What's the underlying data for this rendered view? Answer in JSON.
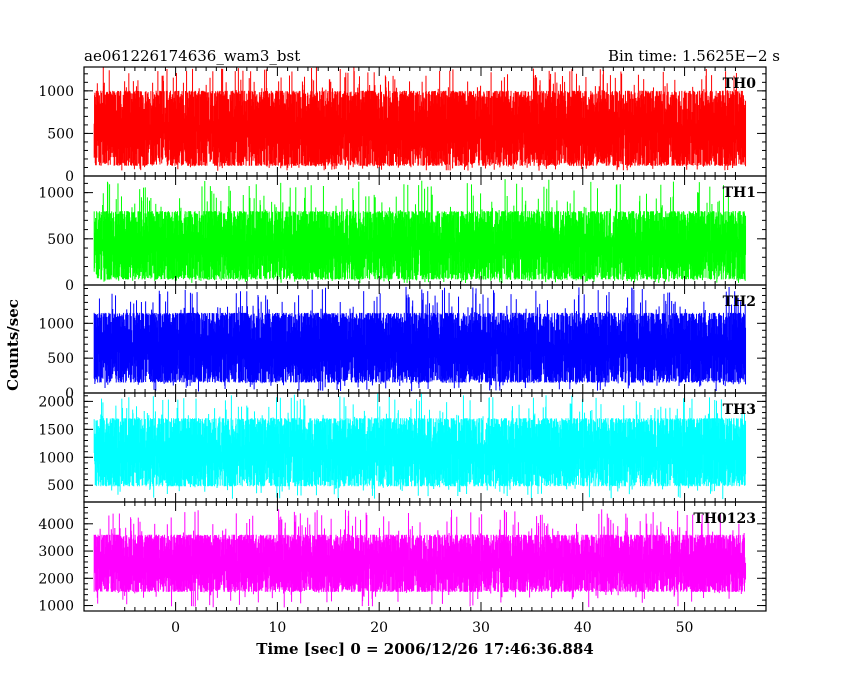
{
  "header": {
    "title": "ae061226174636_wam3_bst",
    "bin_time": "Bin time: 1.5625E−2 s"
  },
  "axes": {
    "xlabel": "Time [sec] 0 = 2006/12/26 17:46:36.884",
    "ylabel": "Counts/sec"
  },
  "chart_data": {
    "type": "line",
    "title": "ae061226174636_wam3_bst",
    "subtitle": "Bin time: 1.5625E−2 s",
    "xlabel": "Time [sec] 0 = 2006/12/26 17:46:36.884",
    "ylabel": "Counts/sec",
    "xlim": [
      -9,
      58
    ],
    "x_range": [
      -8,
      56
    ],
    "xticks": [
      0,
      10,
      20,
      30,
      40,
      50
    ],
    "xtick_labels": [
      "0",
      "10",
      "20",
      "30",
      "40",
      "50"
    ],
    "bin_time_s": 0.015625,
    "panels": [
      {
        "name": "TH0",
        "color": "#ff0000",
        "ylim": [
          0,
          1280
        ],
        "yticks": [
          0,
          500,
          1000
        ],
        "ytick_labels": [
          "0",
          "500",
          "1000"
        ],
        "typical_min": 120,
        "typical_max": 1000,
        "peak_max": 1280,
        "dip_min": 60
      },
      {
        "name": "TH1",
        "color": "#00ff00",
        "ylim": [
          0,
          1180
        ],
        "yticks": [
          0,
          500,
          1000
        ],
        "ytick_labels": [
          "0",
          "500",
          "1000"
        ],
        "typical_min": 60,
        "typical_max": 800,
        "peak_max": 1150,
        "dip_min": 20
      },
      {
        "name": "TH2",
        "color": "#0000ff",
        "ylim": [
          0,
          1550
        ],
        "yticks": [
          0,
          500,
          1000
        ],
        "ytick_labels": [
          "0",
          "500",
          "1000"
        ],
        "typical_min": 150,
        "typical_max": 1150,
        "peak_max": 1550,
        "dip_min": 20
      },
      {
        "name": "TH3",
        "color": "#00ffff",
        "ylim": [
          200,
          2150
        ],
        "yticks": [
          500,
          1000,
          1500,
          2000
        ],
        "ytick_labels": [
          "500",
          "1000",
          "1500",
          "2000"
        ],
        "typical_min": 480,
        "typical_max": 1700,
        "peak_max": 2150,
        "dip_min": 250
      },
      {
        "name": "TH0123",
        "color": "#ff00ff",
        "ylim": [
          800,
          4800
        ],
        "yticks": [
          1000,
          2000,
          3000,
          4000
        ],
        "ytick_labels": [
          "1000",
          "2000",
          "3000",
          "4000"
        ],
        "typical_min": 1500,
        "typical_max": 3600,
        "peak_max": 4600,
        "dip_min": 900
      }
    ]
  }
}
